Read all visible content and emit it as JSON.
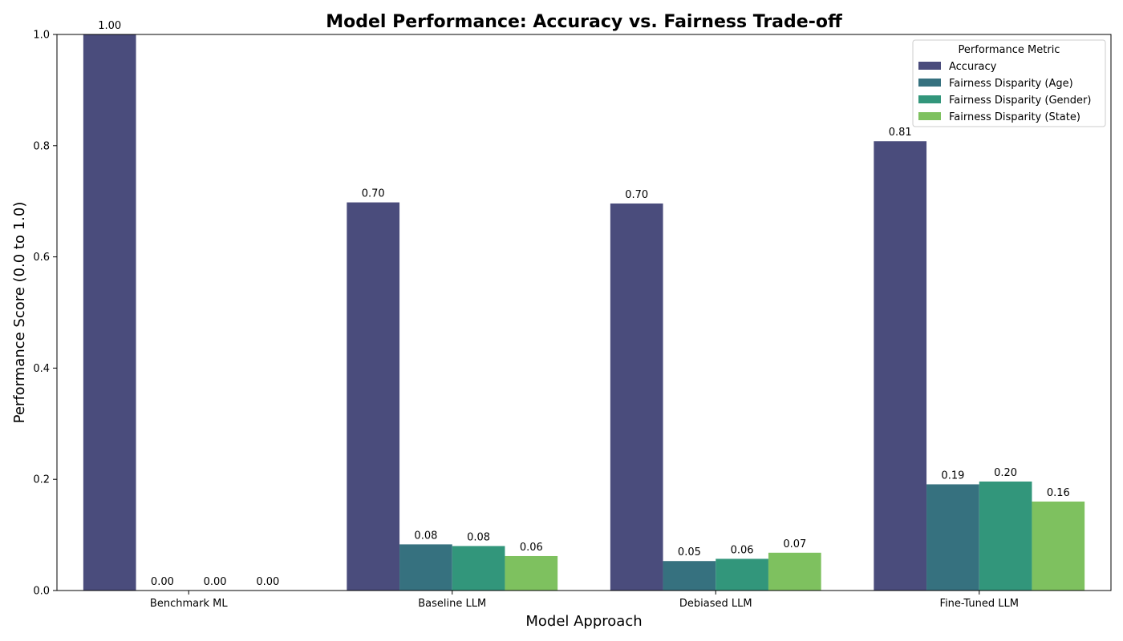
{
  "chart_data": {
    "type": "bar",
    "title": "Model Performance: Accuracy vs. Fairness Trade-off",
    "xlabel": "Model Approach",
    "ylabel": "Performance Score (0.0 to 1.0)",
    "ylim": [
      0,
      1.0
    ],
    "yticks": [
      "0.0",
      "0.2",
      "0.4",
      "0.6",
      "0.8",
      "1.0"
    ],
    "grid": false,
    "legend": {
      "title": "Performance Metric",
      "placement": "top-right"
    },
    "categories": [
      "Benchmark ML",
      "Baseline LLM",
      "Debiased LLM",
      "Fine-Tuned LLM"
    ],
    "series": [
      {
        "name": "Accuracy",
        "color": "#4a4c7c",
        "values": [
          1.0,
          0.698,
          0.696,
          0.808
        ],
        "labels": [
          "1.00",
          "0.70",
          "0.70",
          "0.81"
        ]
      },
      {
        "name": "Fairness Disparity (Age)",
        "color": "#36717f",
        "values": [
          0.0,
          0.083,
          0.053,
          0.191
        ],
        "labels": [
          "0.00",
          "0.08",
          "0.05",
          "0.19"
        ]
      },
      {
        "name": "Fairness Disparity (Gender)",
        "color": "#32967b",
        "values": [
          0.0,
          0.08,
          0.057,
          0.196
        ],
        "labels": [
          "0.00",
          "0.08",
          "0.06",
          "0.20"
        ]
      },
      {
        "name": "Fairness Disparity (State)",
        "color": "#7ec15f",
        "values": [
          0.0,
          0.062,
          0.068,
          0.16
        ],
        "labels": [
          "0.00",
          "0.06",
          "0.07",
          "0.16"
        ]
      }
    ]
  }
}
